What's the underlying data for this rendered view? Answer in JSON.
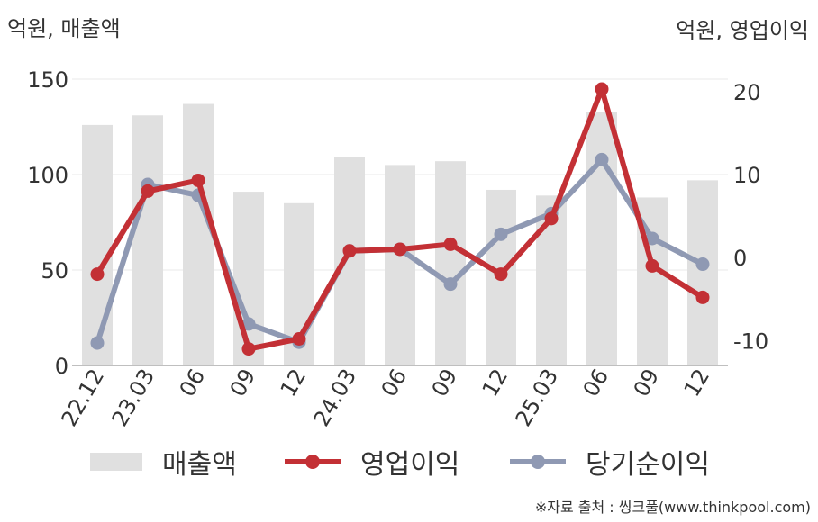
{
  "chart_data": {
    "type": "bar+line",
    "left_axis_unit": "억원, 매출액",
    "right_axis_unit": "억원, 영업이익",
    "categories": [
      "22.12",
      "23.03",
      "06",
      "09",
      "12",
      "24.03",
      "06",
      "09",
      "12",
      "25.03",
      "06",
      "09",
      "12"
    ],
    "y_left": {
      "ticks": [
        0,
        50,
        100,
        150
      ],
      "range": [
        0,
        150
      ]
    },
    "y_right": {
      "ticks": [
        -10,
        0,
        10,
        20
      ],
      "range": [
        -13,
        21.5
      ]
    },
    "series": [
      {
        "name": "매출액",
        "kind": "bar",
        "axis": "left",
        "color": "#e0e0e0",
        "values": [
          126,
          131,
          137,
          91,
          85,
          109,
          105,
          107,
          92,
          89,
          133,
          88,
          97
        ]
      },
      {
        "name": "영업이익",
        "kind": "line",
        "axis": "right",
        "color": "#c33035",
        "values": [
          -2,
          8,
          9.3,
          -11,
          -9.8,
          0.8,
          1,
          1.6,
          -2,
          4.7,
          20.3,
          -1,
          -4.8
        ]
      },
      {
        "name": "당기순이익",
        "kind": "line",
        "axis": "right",
        "color": "#8f99b3",
        "values": [
          -10.3,
          8.8,
          7.5,
          -8,
          -10.2,
          0.8,
          1,
          -3.2,
          2.8,
          5.3,
          11.8,
          2.3,
          -0.8
        ]
      }
    ],
    "legend_position": "bottom",
    "grid": true
  },
  "footer": {
    "source": "※자료 출처 : 씽크풀(www.thinkpool.com)"
  }
}
